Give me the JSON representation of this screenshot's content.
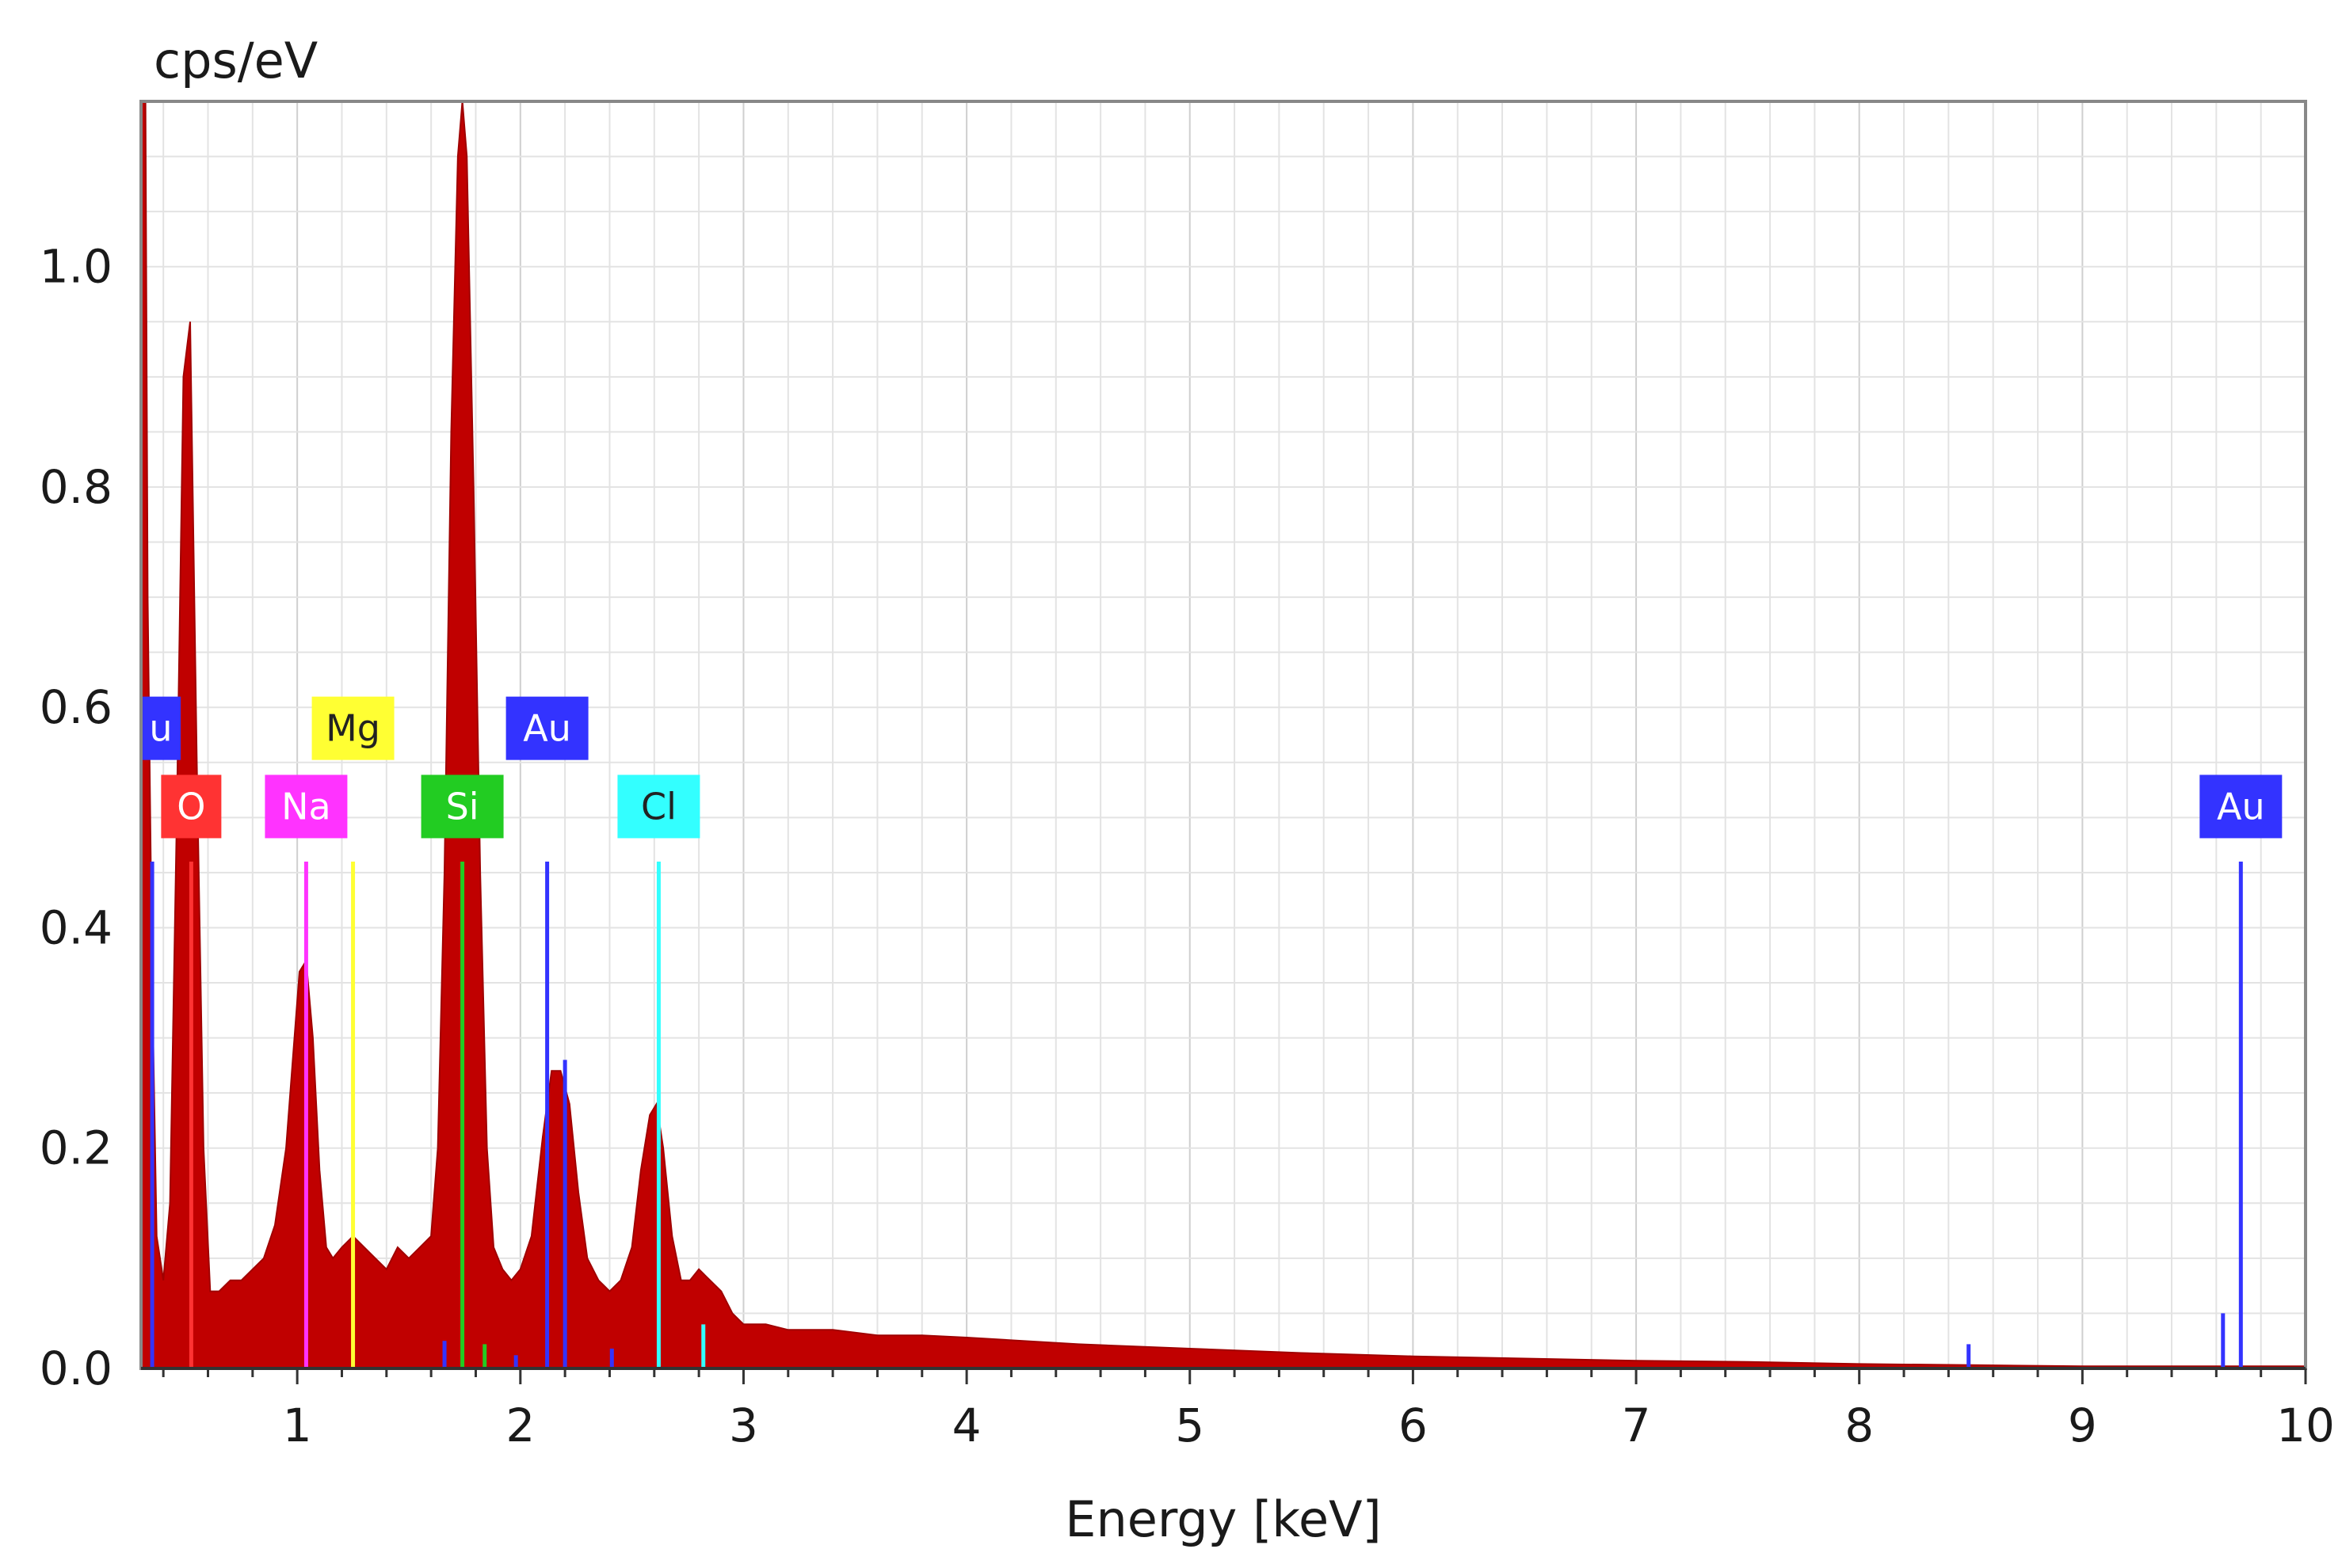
{
  "chart_data": {
    "type": "area",
    "xlabel": "Energy [keV]",
    "ylabel": "cps/eV",
    "xlim": [
      0.3,
      10.0
    ],
    "ylim": [
      0.0,
      1.15
    ],
    "x_ticks": [
      "1",
      "2",
      "3",
      "4",
      "5",
      "6",
      "7",
      "8",
      "9",
      "10"
    ],
    "x_tick_values": [
      1,
      2,
      3,
      4,
      5,
      6,
      7,
      8,
      9,
      10
    ],
    "y_ticks": [
      "0.0",
      "0.2",
      "0.4",
      "0.6",
      "0.8",
      "1.0"
    ],
    "y_tick_values": [
      0.0,
      0.2,
      0.4,
      0.6,
      0.8,
      1.0
    ],
    "grid": true,
    "fill_color": "#c00000",
    "spectrum": {
      "x": [
        0.3,
        0.32,
        0.33,
        0.35,
        0.37,
        0.4,
        0.43,
        0.46,
        0.49,
        0.52,
        0.55,
        0.58,
        0.61,
        0.65,
        0.7,
        0.75,
        0.8,
        0.85,
        0.9,
        0.95,
        0.98,
        1.01,
        1.04,
        1.07,
        1.1,
        1.13,
        1.16,
        1.2,
        1.25,
        1.3,
        1.35,
        1.4,
        1.45,
        1.5,
        1.55,
        1.6,
        1.63,
        1.66,
        1.69,
        1.72,
        1.74,
        1.76,
        1.79,
        1.82,
        1.85,
        1.88,
        1.92,
        1.96,
        2.0,
        2.05,
        2.1,
        2.14,
        2.18,
        2.22,
        2.26,
        2.3,
        2.35,
        2.4,
        2.45,
        2.5,
        2.54,
        2.58,
        2.61,
        2.64,
        2.68,
        2.72,
        2.76,
        2.8,
        2.85,
        2.9,
        2.95,
        3.0,
        3.1,
        3.2,
        3.4,
        3.6,
        3.8,
        4.0,
        4.5,
        5.0,
        5.5,
        6.0,
        6.5,
        7.0,
        7.5,
        8.0,
        8.5,
        9.0,
        9.5,
        10.0
      ],
      "y": [
        1.2,
        1.2,
        0.7,
        0.35,
        0.12,
        0.08,
        0.15,
        0.5,
        0.9,
        0.95,
        0.55,
        0.2,
        0.07,
        0.07,
        0.08,
        0.08,
        0.09,
        0.1,
        0.13,
        0.2,
        0.28,
        0.36,
        0.37,
        0.3,
        0.18,
        0.11,
        0.1,
        0.11,
        0.12,
        0.11,
        0.1,
        0.09,
        0.11,
        0.1,
        0.11,
        0.12,
        0.2,
        0.45,
        0.85,
        1.1,
        1.16,
        1.1,
        0.8,
        0.45,
        0.2,
        0.11,
        0.09,
        0.08,
        0.09,
        0.12,
        0.21,
        0.27,
        0.27,
        0.24,
        0.16,
        0.1,
        0.08,
        0.07,
        0.08,
        0.11,
        0.18,
        0.23,
        0.24,
        0.2,
        0.12,
        0.08,
        0.08,
        0.09,
        0.08,
        0.07,
        0.05,
        0.04,
        0.04,
        0.035,
        0.035,
        0.03,
        0.03,
        0.028,
        0.022,
        0.018,
        0.014,
        0.011,
        0.009,
        0.007,
        0.006,
        0.004,
        0.003,
        0.002,
        0.002,
        0.002
      ]
    },
    "element_markers": [
      {
        "element": "Au",
        "energy": 0.35,
        "color": "#3333ff",
        "row": "upper",
        "label": "u",
        "partial": true
      },
      {
        "element": "O",
        "energy": 0.525,
        "color": "#ff3333",
        "row": "lower",
        "label": "O"
      },
      {
        "element": "Na",
        "energy": 1.04,
        "color": "#ff33ff",
        "row": "lower",
        "label": "Na"
      },
      {
        "element": "Mg",
        "energy": 1.25,
        "color": "#ffff33",
        "row": "upper",
        "label": "Mg"
      },
      {
        "element": "Si",
        "energy": 1.74,
        "color": "#22cc22",
        "row": "lower",
        "label": "Si"
      },
      {
        "element": "Au",
        "energy": 2.12,
        "color": "#3333ff",
        "row": "upper",
        "label": "Au"
      },
      {
        "element": "Cl",
        "energy": 2.62,
        "color": "#33ffff",
        "row": "lower",
        "label": "Cl"
      },
      {
        "element": "Au",
        "energy": 9.71,
        "color": "#3333ff",
        "row": "lower",
        "label": "Au"
      }
    ],
    "minor_lines": [
      {
        "energy": 1.66,
        "height": 0.025,
        "color": "#3333ff"
      },
      {
        "energy": 1.84,
        "height": 0.022,
        "color": "#22cc22"
      },
      {
        "energy": 1.98,
        "height": 0.012,
        "color": "#3333ff"
      },
      {
        "energy": 2.2,
        "height": 0.28,
        "color": "#3333ff"
      },
      {
        "energy": 2.41,
        "height": 0.018,
        "color": "#3333ff"
      },
      {
        "energy": 2.82,
        "height": 0.04,
        "color": "#33ffff"
      },
      {
        "energy": 8.49,
        "height": 0.022,
        "color": "#3333ff"
      },
      {
        "energy": 9.63,
        "height": 0.05,
        "color": "#3333ff"
      }
    ]
  }
}
